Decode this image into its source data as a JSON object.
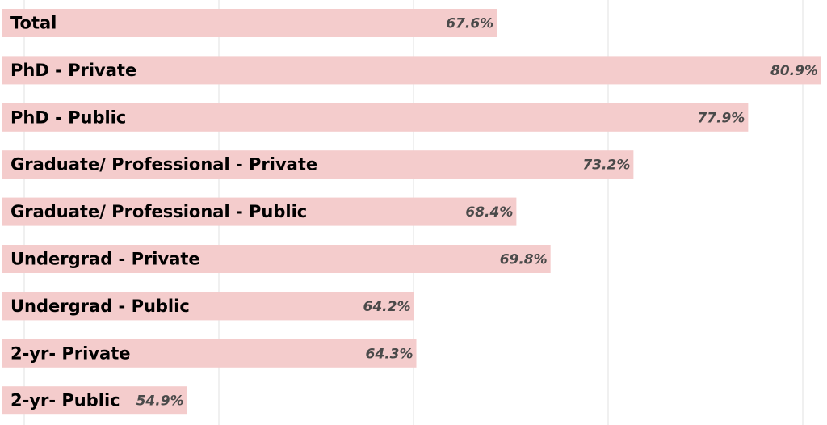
{
  "chart_data": {
    "type": "bar",
    "orientation": "horizontal",
    "categories": [
      "Total",
      "PhD - Private",
      "PhD - Public",
      "Graduate/ Professional - Private",
      "Graduate/ Professional - Public",
      "Undergrad - Private",
      "Undergrad - Public",
      "2-yr- Private",
      "2-yr- Public"
    ],
    "values": [
      67.6,
      80.9,
      77.9,
      73.2,
      68.4,
      69.8,
      64.2,
      64.3,
      54.9
    ],
    "value_labels": [
      "67.6%",
      "80.9%",
      "77.9%",
      "73.2%",
      "68.4%",
      "69.8%",
      "64.2%",
      "64.3%",
      "54.9%"
    ],
    "title": "",
    "xlabel": "",
    "ylabel": "",
    "xlim": [
      47.3,
      81
    ],
    "grid": true,
    "bar_color": "#f4cccc",
    "legend": "none"
  }
}
